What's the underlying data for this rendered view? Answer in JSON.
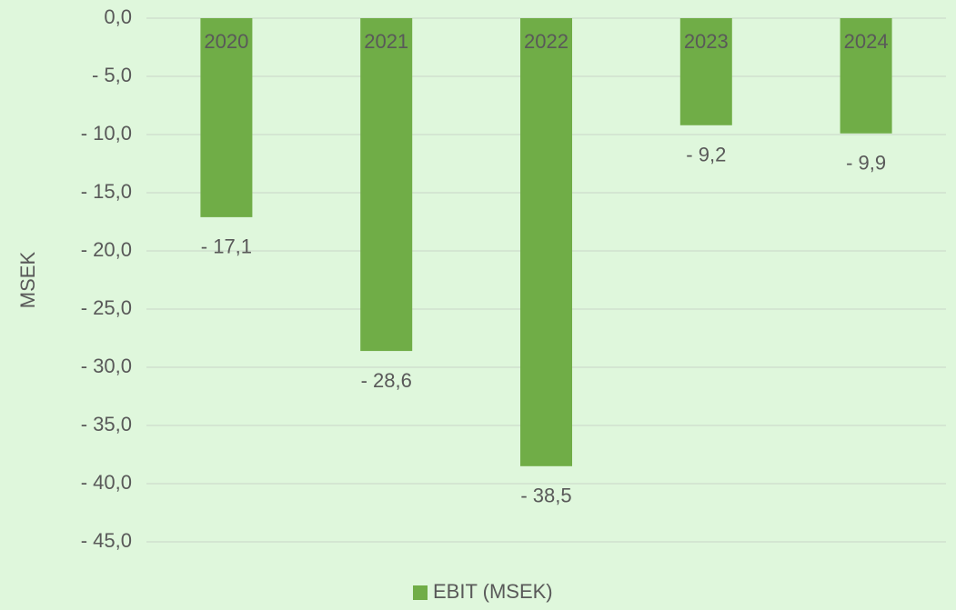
{
  "chart_data": {
    "type": "bar",
    "y_axis_label": "MSEK",
    "categories": [
      "2020",
      "2021",
      "2022",
      "2023",
      "2024"
    ],
    "series": [
      {
        "name": "EBIT (MSEK)",
        "color": "#70ad47",
        "values": [
          -17.1,
          -28.6,
          -38.5,
          -9.2,
          -9.9
        ],
        "value_labels": [
          "- 17,1",
          "- 28,6",
          "- 38,5",
          "- 9,2",
          "- 9,9"
        ]
      }
    ],
    "ylim": [
      -45,
      0
    ],
    "yticks": [
      {
        "value": 0,
        "label": "0,0"
      },
      {
        "value": -5,
        "label": "- 5,0"
      },
      {
        "value": -10,
        "label": "- 10,0"
      },
      {
        "value": -15,
        "label": "- 15,0"
      },
      {
        "value": -20,
        "label": "- 20,0"
      },
      {
        "value": -25,
        "label": "- 25,0"
      },
      {
        "value": -30,
        "label": "- 30,0"
      },
      {
        "value": -35,
        "label": "- 35,0"
      },
      {
        "value": -40,
        "label": "- 40,0"
      },
      {
        "value": -45,
        "label": "- 45,0"
      }
    ],
    "grid": true,
    "legend": "bottom"
  }
}
